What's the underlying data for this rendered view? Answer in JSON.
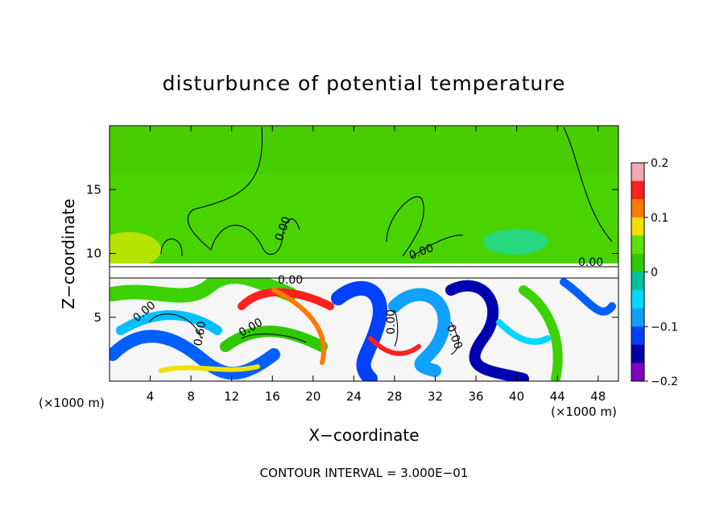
{
  "chart_data": {
    "type": "heatmap",
    "title": "disturbunce of potential temperature",
    "xlabel": "X−coordinate",
    "ylabel": "Z−coordinate",
    "x_unit_left": "(×1000 m)",
    "x_unit_right": "(×1000 m)",
    "xlim": [
      0,
      50
    ],
    "ylim": [
      0,
      20
    ],
    "x_ticks": [
      4,
      8,
      12,
      16,
      20,
      24,
      28,
      32,
      36,
      40,
      44,
      48
    ],
    "y_ticks": [
      5,
      10,
      15
    ],
    "colorbar": {
      "min": -0.2,
      "max": 0.2,
      "ticks": [
        "0.2",
        "0.1",
        "0",
        "−0.1",
        "−0.2"
      ],
      "colors": [
        "#f4a8b0",
        "#ff2020",
        "#ff7a00",
        "#f0e000",
        "#60e000",
        "#30c800",
        "#00c0a0",
        "#00d8ff",
        "#10a0ff",
        "#0040ff",
        "#0000a0",
        "#8000c0"
      ]
    },
    "contour_labels": [
      "0.00",
      "0.00",
      "0.00",
      "0.00",
      "0.60",
      "0.00",
      "0.00",
      "0.00",
      "0.00",
      "0.00"
    ],
    "footer": "CONTOUR INTERVAL = 3.000E−01"
  }
}
